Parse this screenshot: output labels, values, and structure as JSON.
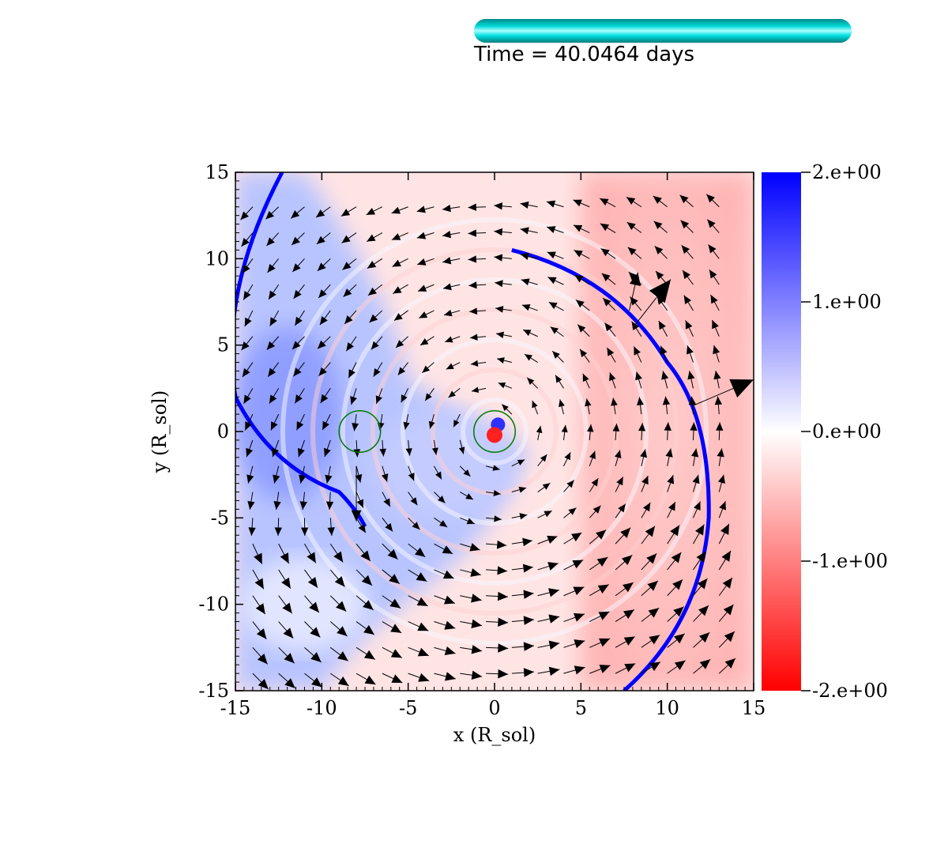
{
  "header": {
    "time_label": "Time = 40.0464 days",
    "progress_fraction": 1.0,
    "progress_color": "#00e0e0"
  },
  "chart_data": {
    "type": "heatmap",
    "title": "",
    "xlabel": "x (R_sol)",
    "ylabel": "y (R_sol)",
    "xlim": [
      -15,
      15
    ],
    "ylim": [
      -15,
      15
    ],
    "x_ticks": [
      "-15",
      "-10",
      "-5",
      "0",
      "5",
      "10",
      "15"
    ],
    "y_ticks": [
      "15",
      "10",
      "5",
      "0",
      "-5",
      "-10",
      "-15"
    ],
    "colorbar": {
      "range": [
        -2.0,
        2.0
      ],
      "tick_labels": [
        "2.e+00",
        "1.e+00",
        "0.e+00",
        "-1.e+00",
        "-2.e+00"
      ],
      "color_max": "#0000ff",
      "color_mid": "#ffffff",
      "color_min": "#ff0000"
    },
    "markers": [
      {
        "name": "",
        "x": -7.8,
        "y": 0.0,
        "r": 1.2,
        "color": "#007a00"
      },
      {
        "name": "",
        "x": 0.0,
        "y": 0.0,
        "r": 1.2,
        "color": "#007a00"
      }
    ],
    "shock_front_color": "#0000ff",
    "vector_field": "velocity arrows"
  }
}
